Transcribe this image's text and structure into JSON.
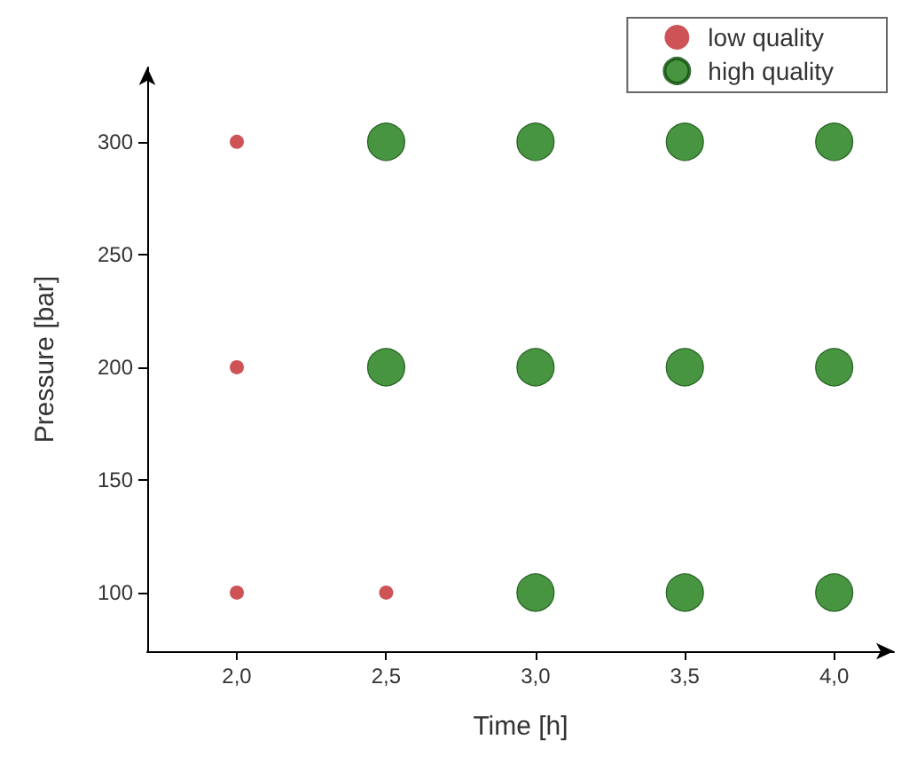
{
  "chart_data": {
    "type": "scatter",
    "xlabel": "Time [h]",
    "ylabel": "Pressure [bar]",
    "xlim": [
      1.7,
      4.2
    ],
    "xticks": [
      {
        "value": 2,
        "label": "2,0"
      },
      {
        "value": 2.5,
        "label": "2,5"
      },
      {
        "value": 3,
        "label": "3,0"
      },
      {
        "value": 3.5,
        "label": "3,5"
      },
      {
        "value": 4,
        "label": "4,0"
      }
    ],
    "ylim": [
      74,
      333
    ],
    "yticks": [
      100,
      150,
      200,
      250,
      300
    ],
    "series": [
      {
        "name": "low quality",
        "color": "#c0282d",
        "x": [
          2,
          2,
          2,
          2.5
        ],
        "values": [
          100,
          200,
          300,
          100
        ]
      },
      {
        "name": "high quality",
        "color": "#1a7a12",
        "x": [
          2.5,
          2.5,
          3,
          3,
          3,
          3.5,
          3.5,
          3.5,
          4,
          4,
          4
        ],
        "values": [
          200,
          300,
          100,
          200,
          300,
          100,
          200,
          300,
          100,
          200,
          300
        ]
      }
    ],
    "marker": "circle",
    "legend": "top right",
    "grid": false
  }
}
